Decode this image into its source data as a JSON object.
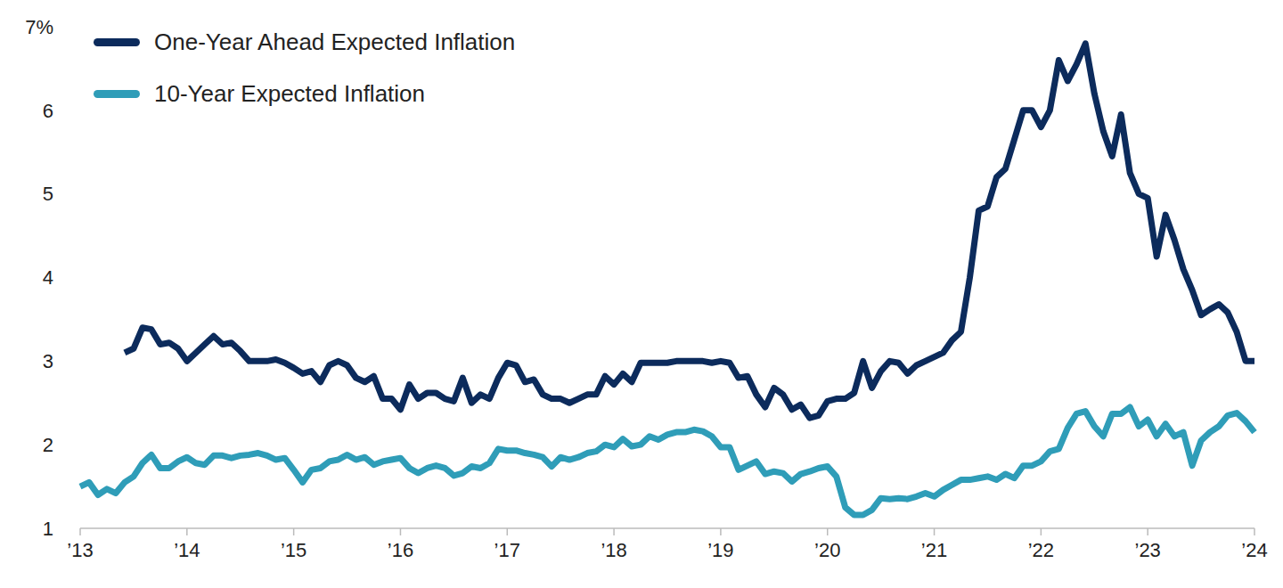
{
  "chart_data": {
    "type": "line",
    "legend": "upper left",
    "grid": false,
    "categories": [
      "’13",
      null,
      null,
      null,
      null,
      null,
      null,
      null,
      null,
      null,
      null,
      null,
      "’14",
      null,
      null,
      null,
      null,
      null,
      null,
      null,
      null,
      null,
      null,
      null,
      "’15",
      null,
      null,
      null,
      null,
      null,
      null,
      null,
      null,
      null,
      null,
      null,
      "’16",
      null,
      null,
      null,
      null,
      null,
      null,
      null,
      null,
      null,
      null,
      null,
      "’17",
      null,
      null,
      null,
      null,
      null,
      null,
      null,
      null,
      null,
      null,
      null,
      "’18",
      null,
      null,
      null,
      null,
      null,
      null,
      null,
      null,
      null,
      null,
      null,
      "’19",
      null,
      null,
      null,
      null,
      null,
      null,
      null,
      null,
      null,
      null,
      null,
      "’20",
      null,
      null,
      null,
      null,
      null,
      null,
      null,
      null,
      null,
      null,
      null,
      "’21",
      null,
      null,
      null,
      null,
      null,
      null,
      null,
      null,
      null,
      null,
      null,
      "’22",
      null,
      null,
      null,
      null,
      null,
      null,
      null,
      null,
      null,
      null,
      null,
      "’23",
      null,
      null,
      null,
      null,
      null,
      null,
      null,
      null,
      null,
      null,
      null,
      "’24"
    ],
    "ylim": [
      1,
      7
    ],
    "yticks": [
      1,
      2,
      3,
      4,
      5,
      6,
      {
        "value": 7,
        "label": "7%"
      }
    ],
    "series": [
      {
        "name": "One-Year Ahead Expected Inflation",
        "color": "#0c2b5c",
        "values": [
          null,
          null,
          null,
          null,
          null,
          3.1,
          3.15,
          3.4,
          3.38,
          3.2,
          3.22,
          3.15,
          3.0,
          3.1,
          3.2,
          3.3,
          3.2,
          3.22,
          3.12,
          3.0,
          3.0,
          3.0,
          3.02,
          2.98,
          2.92,
          2.85,
          2.88,
          2.75,
          2.95,
          3.0,
          2.95,
          2.8,
          2.75,
          2.82,
          2.55,
          2.55,
          2.42,
          2.72,
          2.55,
          2.62,
          2.62,
          2.55,
          2.52,
          2.8,
          2.5,
          2.6,
          2.55,
          2.8,
          2.98,
          2.95,
          2.75,
          2.78,
          2.6,
          2.55,
          2.55,
          2.5,
          2.55,
          2.6,
          2.6,
          2.82,
          2.72,
          2.85,
          2.75,
          2.98,
          2.98,
          2.98,
          2.98,
          3.0,
          3.0,
          3.0,
          3.0,
          2.98,
          3.0,
          2.98,
          2.8,
          2.82,
          2.6,
          2.45,
          2.68,
          2.6,
          2.42,
          2.48,
          2.32,
          2.35,
          2.52,
          2.55,
          2.55,
          2.62,
          3.0,
          2.68,
          2.88,
          3.0,
          2.98,
          2.85,
          2.95,
          3.0,
          3.05,
          3.1,
          3.25,
          3.35,
          4.0,
          4.8,
          4.85,
          5.2,
          5.3,
          5.65,
          6.0,
          6.0,
          5.8,
          6.0,
          6.6,
          6.35,
          6.55,
          6.8,
          6.2,
          5.75,
          5.45,
          5.95,
          5.25,
          5.0,
          4.95,
          4.25,
          4.75,
          4.45,
          4.1,
          3.85,
          3.55,
          3.62,
          3.68,
          3.58,
          3.35,
          3.0,
          3.0
        ]
      },
      {
        "name": "10-Year Expected Inflation",
        "color": "#2f9db8",
        "values": [
          1.5,
          1.55,
          1.4,
          1.47,
          1.42,
          1.55,
          1.62,
          1.78,
          1.88,
          1.72,
          1.72,
          1.8,
          1.85,
          1.78,
          1.76,
          1.87,
          1.87,
          1.84,
          1.87,
          1.88,
          1.9,
          1.87,
          1.82,
          1.84,
          1.7,
          1.55,
          1.7,
          1.72,
          1.8,
          1.82,
          1.88,
          1.82,
          1.85,
          1.76,
          1.8,
          1.82,
          1.84,
          1.72,
          1.66,
          1.72,
          1.75,
          1.72,
          1.63,
          1.66,
          1.74,
          1.72,
          1.78,
          1.95,
          1.93,
          1.93,
          1.9,
          1.88,
          1.85,
          1.74,
          1.85,
          1.82,
          1.85,
          1.9,
          1.92,
          2.0,
          1.97,
          2.07,
          1.98,
          2.0,
          2.1,
          2.06,
          2.12,
          2.15,
          2.15,
          2.18,
          2.16,
          2.1,
          1.97,
          1.97,
          1.7,
          1.75,
          1.8,
          1.65,
          1.68,
          1.66,
          1.56,
          1.65,
          1.68,
          1.72,
          1.74,
          1.62,
          1.25,
          1.16,
          1.16,
          1.22,
          1.36,
          1.35,
          1.36,
          1.35,
          1.38,
          1.42,
          1.38,
          1.46,
          1.52,
          1.58,
          1.58,
          1.6,
          1.62,
          1.58,
          1.65,
          1.6,
          1.75,
          1.75,
          1.8,
          1.92,
          1.95,
          2.2,
          2.37,
          2.4,
          2.22,
          2.1,
          2.37,
          2.37,
          2.45,
          2.22,
          2.3,
          2.1,
          2.25,
          2.1,
          2.15,
          1.75,
          2.05,
          2.15,
          2.22,
          2.35,
          2.38,
          2.28,
          2.15
        ]
      }
    ]
  }
}
